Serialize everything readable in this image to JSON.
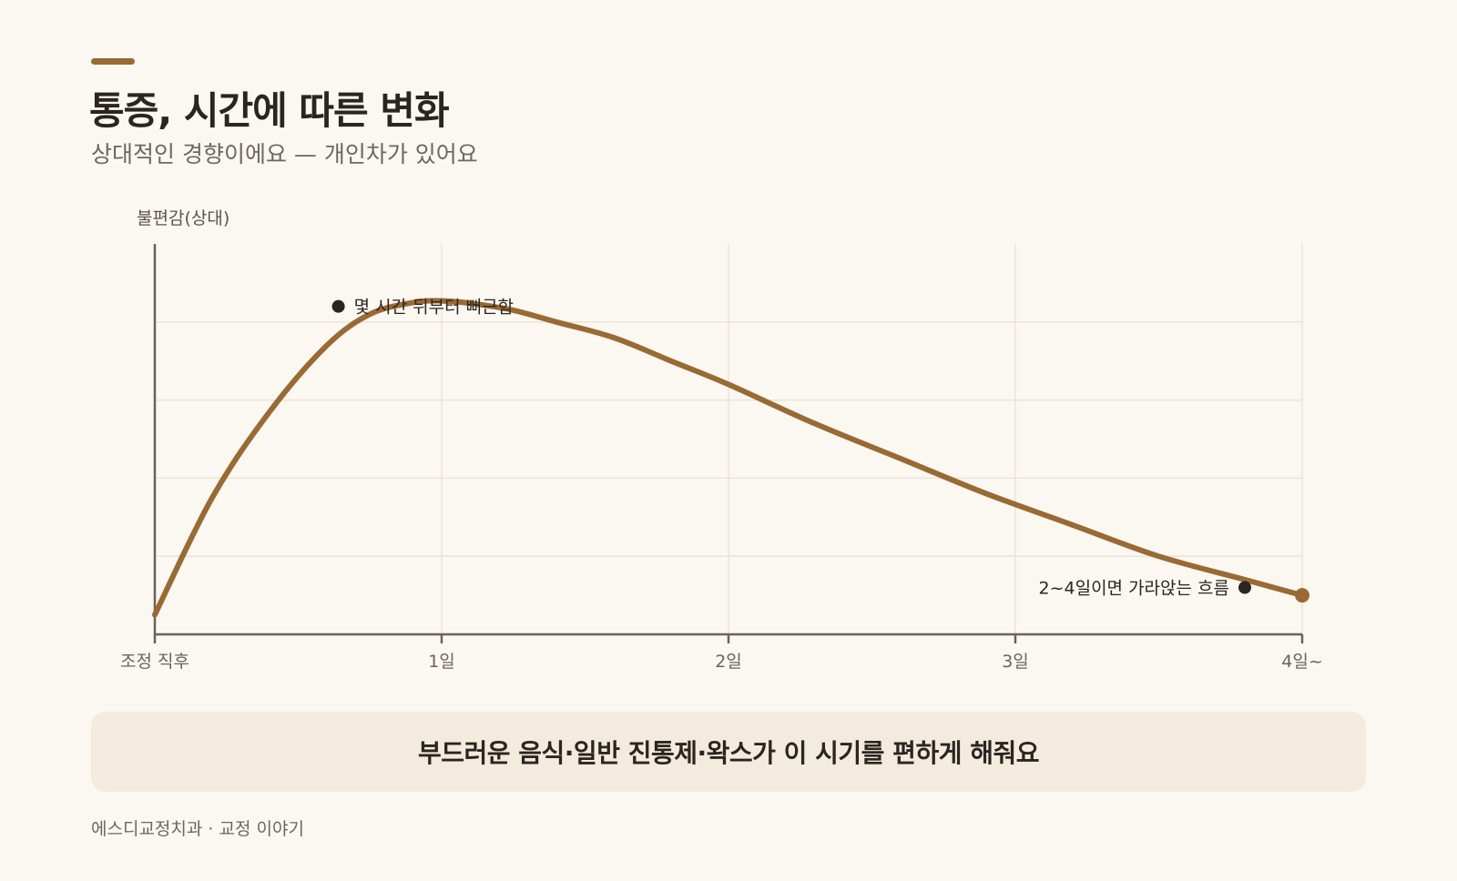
{
  "header": {
    "title": "통증, 시간에 따른 변화",
    "subtitle": "상대적인 경향이에요 — 개인차가 있어요"
  },
  "colors": {
    "accent": "#9a6a34",
    "axis": "#6b6359",
    "grid": "#ece4d6",
    "dot": "#2b2522"
  },
  "chart_data": {
    "type": "line",
    "title": "",
    "xlabel": "",
    "ylabel": "불편감(상대)",
    "x_tick_labels": [
      "조정 직후",
      "1일",
      "2일",
      "3일",
      "4일~"
    ],
    "xlim": [
      0,
      4
    ],
    "ylim": [
      0,
      5
    ],
    "grid": true,
    "series": [
      {
        "x": [
          0,
          0.2,
          0.4,
          0.6,
          0.75,
          0.9,
          1.0,
          1.1,
          1.25,
          1.4,
          1.6,
          1.8,
          2.0,
          2.3,
          2.6,
          2.9,
          3.2,
          3.5,
          3.8,
          4.0
        ],
        "values": [
          0.25,
          1.75,
          2.85,
          3.7,
          4.1,
          4.25,
          4.27,
          4.24,
          4.15,
          4.0,
          3.8,
          3.5,
          3.2,
          2.7,
          2.25,
          1.8,
          1.4,
          1.0,
          0.7,
          0.5
        ]
      }
    ],
    "annotations": [
      {
        "text": "몇 시간 뒤부터 뻐근함",
        "x": 0.64,
        "y": 4.2
      },
      {
        "text": "2~4일이면 가라앉는 흐름",
        "x": 3.8,
        "y": 0.6
      }
    ]
  },
  "callout": {
    "text": "부드러운 음식·일반 진통제·왁스가 이 시기를 편하게 해줘요"
  },
  "footer": {
    "text": "에스디교정치과 · 교정 이야기"
  }
}
